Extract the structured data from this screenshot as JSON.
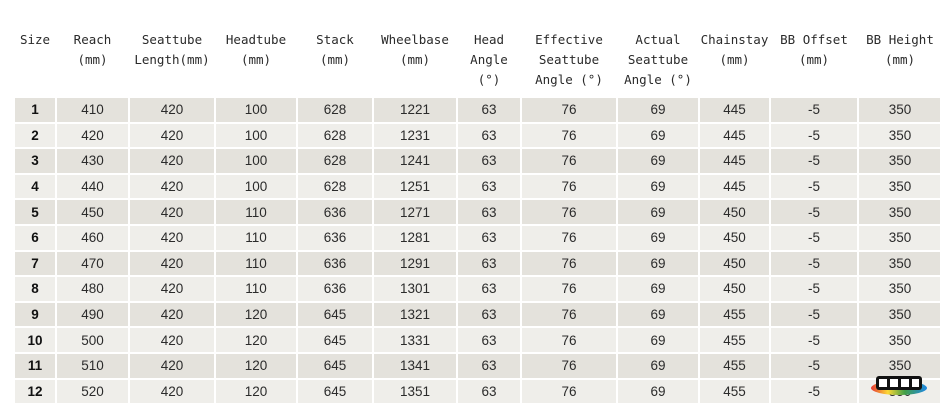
{
  "table": {
    "headers": [
      [
        "Size"
      ],
      [
        "Reach",
        "(mm)"
      ],
      [
        "Seattube",
        "Length(mm)"
      ],
      [
        "Headtube",
        "(mm)"
      ],
      [
        "Stack",
        "(mm)"
      ],
      [
        "Wheelbase",
        "(mm)"
      ],
      [
        "Head",
        "Angle",
        "(°)"
      ],
      [
        "Effective",
        "Seattube",
        "Angle (°)"
      ],
      [
        "Actual",
        "Seattube",
        "Angle (°)"
      ],
      [
        "Chainstay",
        "(mm)"
      ],
      [
        "BB Offset",
        "(mm)"
      ],
      [
        "BB Height",
        "(mm)"
      ]
    ],
    "rows": [
      [
        "1",
        "410",
        "420",
        "100",
        "628",
        "1221",
        "63",
        "76",
        "69",
        "445",
        "-5",
        "350"
      ],
      [
        "2",
        "420",
        "420",
        "100",
        "628",
        "1231",
        "63",
        "76",
        "69",
        "445",
        "-5",
        "350"
      ],
      [
        "3",
        "430",
        "420",
        "100",
        "628",
        "1241",
        "63",
        "76",
        "69",
        "445",
        "-5",
        "350"
      ],
      [
        "4",
        "440",
        "420",
        "100",
        "628",
        "1251",
        "63",
        "76",
        "69",
        "445",
        "-5",
        "350"
      ],
      [
        "5",
        "450",
        "420",
        "110",
        "636",
        "1271",
        "63",
        "76",
        "69",
        "450",
        "-5",
        "350"
      ],
      [
        "6",
        "460",
        "420",
        "110",
        "636",
        "1281",
        "63",
        "76",
        "69",
        "450",
        "-5",
        "350"
      ],
      [
        "7",
        "470",
        "420",
        "110",
        "636",
        "1291",
        "63",
        "76",
        "69",
        "450",
        "-5",
        "350"
      ],
      [
        "8",
        "480",
        "420",
        "110",
        "636",
        "1301",
        "63",
        "76",
        "69",
        "450",
        "-5",
        "350"
      ],
      [
        "9",
        "490",
        "420",
        "120",
        "645",
        "1321",
        "63",
        "76",
        "69",
        "455",
        "-5",
        "350"
      ],
      [
        "10",
        "500",
        "420",
        "120",
        "645",
        "1331",
        "63",
        "76",
        "69",
        "455",
        "-5",
        "350"
      ],
      [
        "11",
        "510",
        "420",
        "120",
        "645",
        "1341",
        "63",
        "76",
        "69",
        "455",
        "-5",
        "350"
      ],
      [
        "12",
        "520",
        "420",
        "120",
        "645",
        "1351",
        "63",
        "76",
        "69",
        "455",
        "-5",
        "350"
      ]
    ]
  },
  "colors": {
    "row_odd": "#e4e2dc",
    "row_even": "#efeeea",
    "text": "#2b2b2b"
  },
  "watermark": {
    "icon": "site-watermark-logo"
  }
}
